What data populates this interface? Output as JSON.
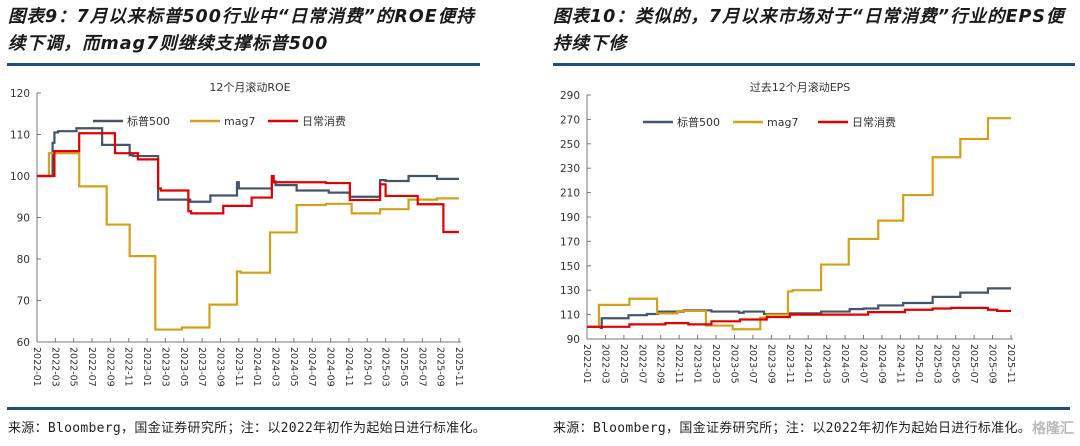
{
  "left_title": "图表9：7月以来标普500行业中“日常消费”的ROE便持续下调，而mag7则继续支撑标普500",
  "right_title": "图表10：类似的，7月以来市场对于“日常消费”行业的EPS便持续下修",
  "footer_left": "来源：Bloomberg，国金证券研究所；注：以2022年初作为起始日进行标准化。",
  "footer_right": "来源：Bloomberg，国金证券研究所；注：以2022年初作为起始日进行标准化。",
  "watermark": "格隆汇",
  "colors": {
    "sp500": "#44546a",
    "mag7": "#d4a017",
    "consumer": "#e00000",
    "rule": "#1f4e79"
  },
  "chart_data": [
    {
      "type": "line",
      "title": "12个月滚动ROE",
      "ylim": [
        60,
        120
      ],
      "yticks": [
        60,
        70,
        80,
        90,
        100,
        110,
        120
      ],
      "x_tick_labels": [
        "2022-01",
        "2022-03",
        "2022-05",
        "2022-07",
        "2022-09",
        "2022-11",
        "2023-01",
        "2023-03",
        "2023-05",
        "2023-07",
        "2023-09",
        "2023-11",
        "2024-01",
        "2024-03",
        "2024-05",
        "2024-07",
        "2024-09",
        "2024-11",
        "2025-01",
        "2025-03",
        "2025-05",
        "2025-07",
        "2025-09",
        "2025-11"
      ],
      "x_unit": "months since 2022-01 (step series: [month, value])",
      "series": [
        {
          "name": "标普500",
          "color_key": "sp500",
          "steps": [
            [
              0,
              100
            ],
            [
              1.7,
              108
            ],
            [
              1.9,
              110.5
            ],
            [
              2.3,
              110.8
            ],
            [
              4.3,
              111.5
            ],
            [
              7.1,
              107.5
            ],
            [
              10.1,
              105
            ],
            [
              10.5,
              104.8
            ],
            [
              13.2,
              94.3
            ],
            [
              16.7,
              93.8
            ],
            [
              18.9,
              95.3
            ],
            [
              21.8,
              98.5
            ],
            [
              22.0,
              97
            ],
            [
              25.6,
              98.7
            ],
            [
              26,
              97.8
            ],
            [
              28.3,
              96.5
            ],
            [
              31.8,
              96
            ],
            [
              34.1,
              95
            ],
            [
              37.4,
              99
            ],
            [
              38,
              98.8
            ],
            [
              40.5,
              100
            ],
            [
              43.6,
              99.3
            ],
            [
              46,
              99.3
            ]
          ]
        },
        {
          "name": "mag7",
          "color_key": "mag7",
          "steps": [
            [
              0,
              100
            ],
            [
              1.3,
              105.5
            ],
            [
              4.6,
              97.5
            ],
            [
              7.6,
              88.3
            ],
            [
              10.1,
              80.7
            ],
            [
              12.9,
              63
            ],
            [
              15.8,
              63.5
            ],
            [
              18.8,
              69
            ],
            [
              21.8,
              77
            ],
            [
              22.2,
              76.7
            ],
            [
              25.4,
              86.4
            ],
            [
              28.3,
              93
            ],
            [
              31.5,
              93.3
            ],
            [
              34.3,
              91
            ],
            [
              37.4,
              92
            ],
            [
              40.5,
              94.3
            ],
            [
              43.6,
              94.6
            ],
            [
              46,
              94.6
            ]
          ]
        },
        {
          "name": "日常消费",
          "color_key": "consumer",
          "steps": [
            [
              0,
              100
            ],
            [
              1.9,
              106
            ],
            [
              4.6,
              110.3
            ],
            [
              8.5,
              105.5
            ],
            [
              11,
              104
            ],
            [
              13.2,
              97
            ],
            [
              13.5,
              96.5
            ],
            [
              16.5,
              91.5
            ],
            [
              16.8,
              91
            ],
            [
              20.3,
              92.8
            ],
            [
              23.4,
              94.8
            ],
            [
              25.6,
              100
            ],
            [
              25.8,
              98.5
            ],
            [
              31.5,
              98.3
            ],
            [
              34.1,
              94.2
            ],
            [
              37.4,
              98
            ],
            [
              38,
              95.2
            ],
            [
              41.5,
              93.2
            ],
            [
              44.3,
              86.5
            ],
            [
              46,
              86.5
            ]
          ]
        }
      ]
    },
    {
      "type": "line",
      "title": "过去12个月滚动EPS",
      "ylim": [
        90,
        290
      ],
      "yticks": [
        90,
        110,
        130,
        150,
        170,
        190,
        210,
        230,
        250,
        270,
        290
      ],
      "x_tick_labels": [
        "2022-01",
        "2022-03",
        "2022-05",
        "2022-07",
        "2022-09",
        "2022-11",
        "2023-01",
        "2023-03",
        "2023-05",
        "2023-07",
        "2023-09",
        "2023-11",
        "2024-01",
        "2024-03",
        "2024-05",
        "2024-07",
        "2024-09",
        "2024-11",
        "2025-01",
        "2025-03",
        "2025-05",
        "2025-07",
        "2025-09",
        "2025-11"
      ],
      "x_unit": "months since 2022-01 (step series: [month, value])",
      "series": [
        {
          "name": "标普500",
          "color_key": "sp500",
          "steps": [
            [
              0,
              100
            ],
            [
              1.5,
              99
            ],
            [
              1.6,
              107
            ],
            [
              4.5,
              109.5
            ],
            [
              6.5,
              110.5
            ],
            [
              7.7,
              112.5
            ],
            [
              10.5,
              113.5
            ],
            [
              13.5,
              112.5
            ],
            [
              16.5,
              111.5
            ],
            [
              17,
              112.5
            ],
            [
              19.2,
              110.5
            ],
            [
              22,
              111
            ],
            [
              25.4,
              112.5
            ],
            [
              28.5,
              114.5
            ],
            [
              30,
              115
            ],
            [
              31.6,
              117.5
            ],
            [
              34.3,
              119.5
            ],
            [
              37.5,
              124.5
            ],
            [
              40.5,
              128
            ],
            [
              43.5,
              131.5
            ],
            [
              46,
              131.5
            ]
          ]
        },
        {
          "name": "mag7",
          "color_key": "mag7",
          "steps": [
            [
              0,
              100
            ],
            [
              1.3,
              118
            ],
            [
              4.6,
              123
            ],
            [
              7.6,
              111
            ],
            [
              9.8,
              113
            ],
            [
              12.9,
              101
            ],
            [
              15.8,
              98
            ],
            [
              18.8,
              107.5
            ],
            [
              19.5,
              110
            ],
            [
              21.8,
              129
            ],
            [
              22.3,
              130
            ],
            [
              25.4,
              151
            ],
            [
              28.4,
              172
            ],
            [
              31.6,
              187
            ],
            [
              34.3,
              208
            ],
            [
              37.5,
              239
            ],
            [
              40.5,
              254
            ],
            [
              43.5,
              271
            ],
            [
              46,
              271
            ]
          ]
        },
        {
          "name": "日常消费",
          "color_key": "consumer",
          "steps": [
            [
              0,
              100
            ],
            [
              4.6,
              102
            ],
            [
              8.5,
              103
            ],
            [
              11,
              102
            ],
            [
              13.5,
              104.5
            ],
            [
              16.6,
              106
            ],
            [
              19.5,
              108
            ],
            [
              22,
              110
            ],
            [
              30.5,
              112
            ],
            [
              34.5,
              114
            ],
            [
              37.5,
              115
            ],
            [
              39.5,
              115.5
            ],
            [
              43.5,
              114
            ],
            [
              44.5,
              113
            ],
            [
              46,
              113
            ]
          ]
        }
      ]
    }
  ]
}
